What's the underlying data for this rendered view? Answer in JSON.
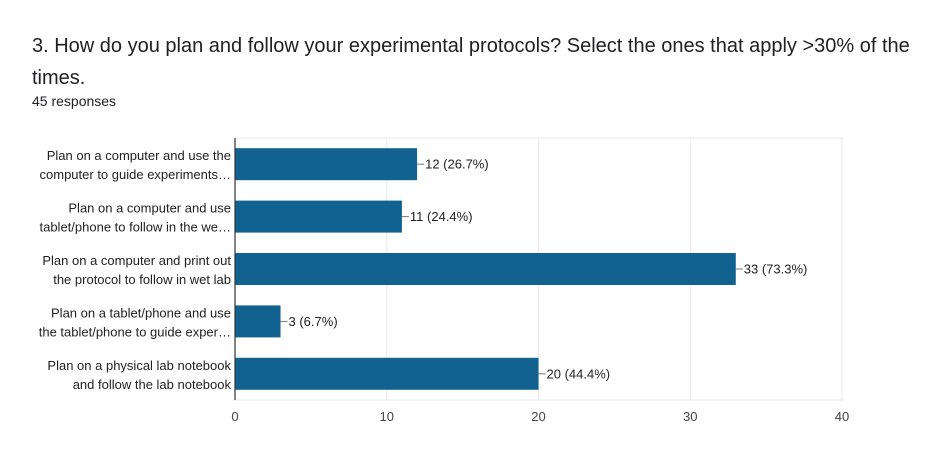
{
  "question": {
    "title": "3. How do you plan and follow your experimental protocols? Select the ones that apply >30% of the times.",
    "responses": "45 responses"
  },
  "colors": {
    "bar": "#12628f",
    "grid": "#e9e9e9",
    "axis": "#333333"
  },
  "chart_data": {
    "type": "bar",
    "orientation": "horizontal",
    "categories": [
      [
        "Plan on a computer and use the",
        "computer to guide experiments…"
      ],
      [
        "Plan on a computer and use",
        "tablet/phone to follow in the we…"
      ],
      [
        "Plan on a computer and print out",
        "the protocol to follow in wet lab"
      ],
      [
        "Plan on a tablet/phone and use",
        "the tablet/phone to guide exper…"
      ],
      [
        "Plan on a physical lab notebook",
        "and follow the lab notebook"
      ]
    ],
    "values": [
      12,
      11,
      33,
      3,
      20
    ],
    "data_labels": [
      "12 (26.7%)",
      "11 (24.4%)",
      "33 (73.3%)",
      "3 (6.7%)",
      "20 (44.4%)"
    ],
    "xlim": [
      0,
      40
    ],
    "xticks": [
      0,
      10,
      20,
      30,
      40
    ],
    "grid": true,
    "legend": "none"
  }
}
